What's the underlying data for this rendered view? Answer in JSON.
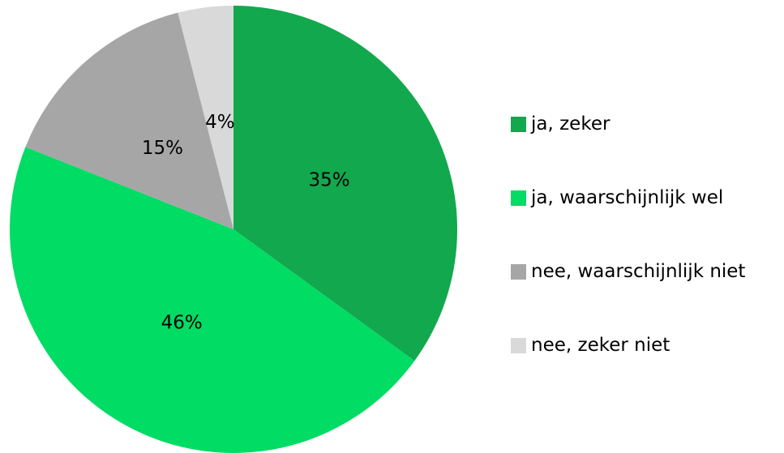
{
  "chart_data": {
    "type": "pie",
    "categories": [
      "ja, zeker",
      "ja, waarschijnlijk wel",
      "nee, waarschijnlijk niet",
      "nee, zeker niet"
    ],
    "values": [
      35,
      46,
      15,
      4
    ],
    "value_labels": [
      "35%",
      "46%",
      "15%",
      "4%"
    ],
    "colors": [
      "#12a84e",
      "#00dc64",
      "#a6a6a6",
      "#d9d9d9"
    ]
  }
}
